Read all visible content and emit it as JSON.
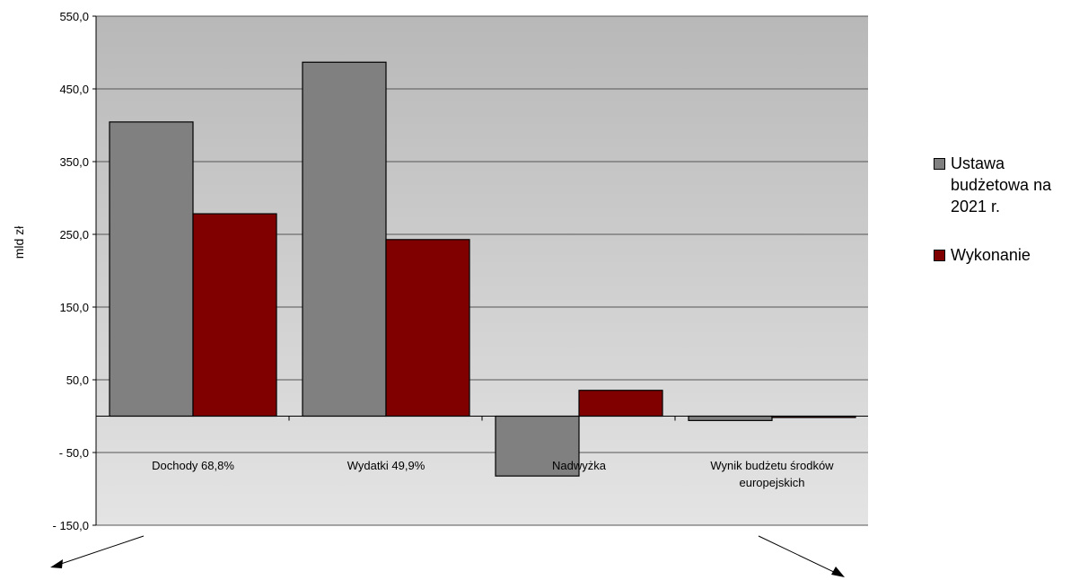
{
  "chart_data": {
    "type": "bar",
    "ylabel": "mld zł",
    "ylim": [
      -150,
      550
    ],
    "yticks": [
      550,
      450,
      350,
      250,
      150,
      50,
      -50,
      -150
    ],
    "ytick_labels": [
      "550,0",
      "450,0",
      "350,0",
      "250,0",
      "150,0",
      "50,0",
      "- 50,0",
      "- 150,0"
    ],
    "categories": [
      "Dochody 68,8%",
      "Wydatki 49,9%",
      "Nadwyżka",
      "Wynik budżetu środków europejskich"
    ],
    "category_lines": [
      [
        "Dochody 68,8%"
      ],
      [
        "Wydatki 49,9%"
      ],
      [
        "Nadwyżka"
      ],
      [
        "Wynik budżetu środków",
        "europejskich"
      ]
    ],
    "series": [
      {
        "name": "Ustawa budżetowa na 2021 r.",
        "color": "#808080",
        "values": [
          404.5,
          486.7,
          -82.3,
          -6.0
        ]
      },
      {
        "name": "Wykonanie",
        "color": "#800000",
        "values": [
          278.3,
          242.8,
          35.5,
          -0.8
        ]
      }
    ],
    "legend_position": "right",
    "grid": true,
    "background_gradient": [
      "#b8b8b8",
      "#e4e4e4"
    ]
  },
  "legend_lines": [
    [
      "Ustawa",
      "budżetowa na",
      "2021 r."
    ],
    [
      "Wykonanie"
    ]
  ]
}
